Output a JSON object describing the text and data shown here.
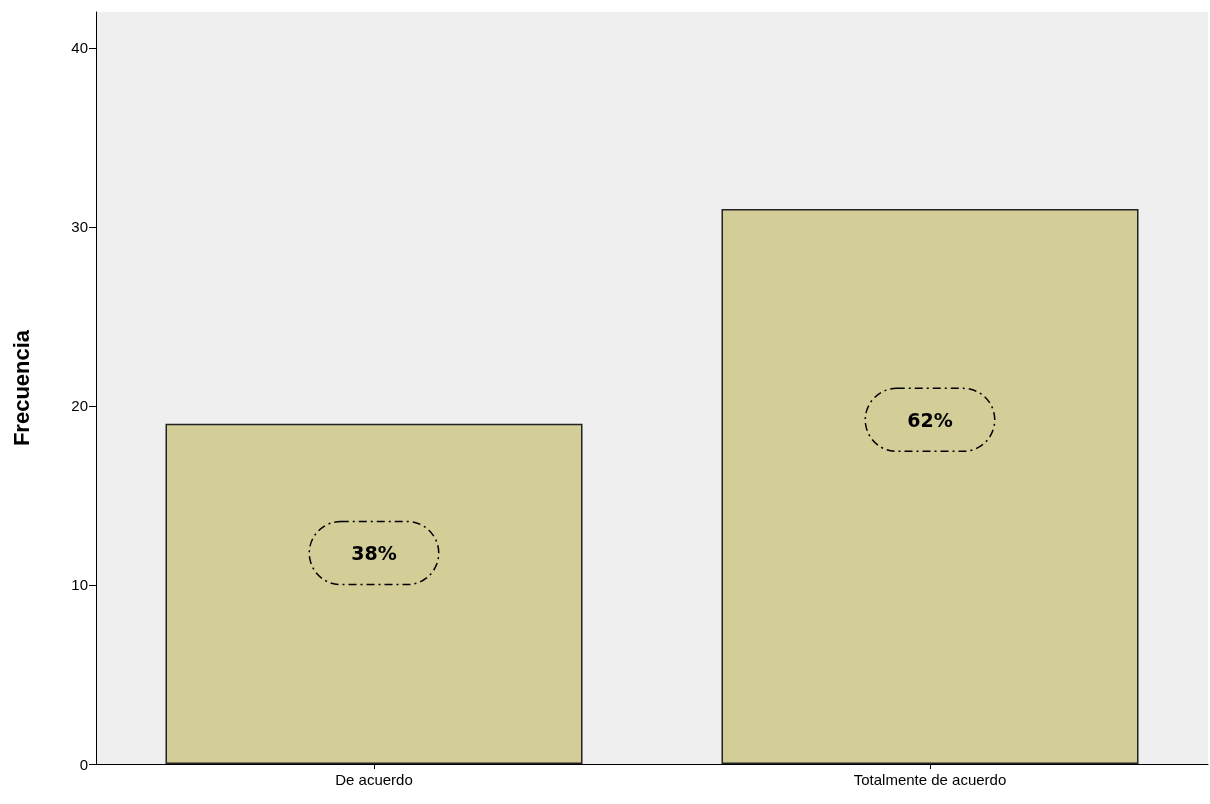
{
  "chart_data": {
    "type": "bar",
    "ylabel": "Frecuencia",
    "categories": [
      "De acuerdo",
      "Totalmente de acuerdo"
    ],
    "values": [
      19,
      31
    ],
    "color": "#d3cd98",
    "annotations": [
      "38%",
      "62%"
    ],
    "ylim": [
      0,
      42
    ],
    "yticks": [
      0,
      10,
      20,
      30,
      40
    ]
  }
}
